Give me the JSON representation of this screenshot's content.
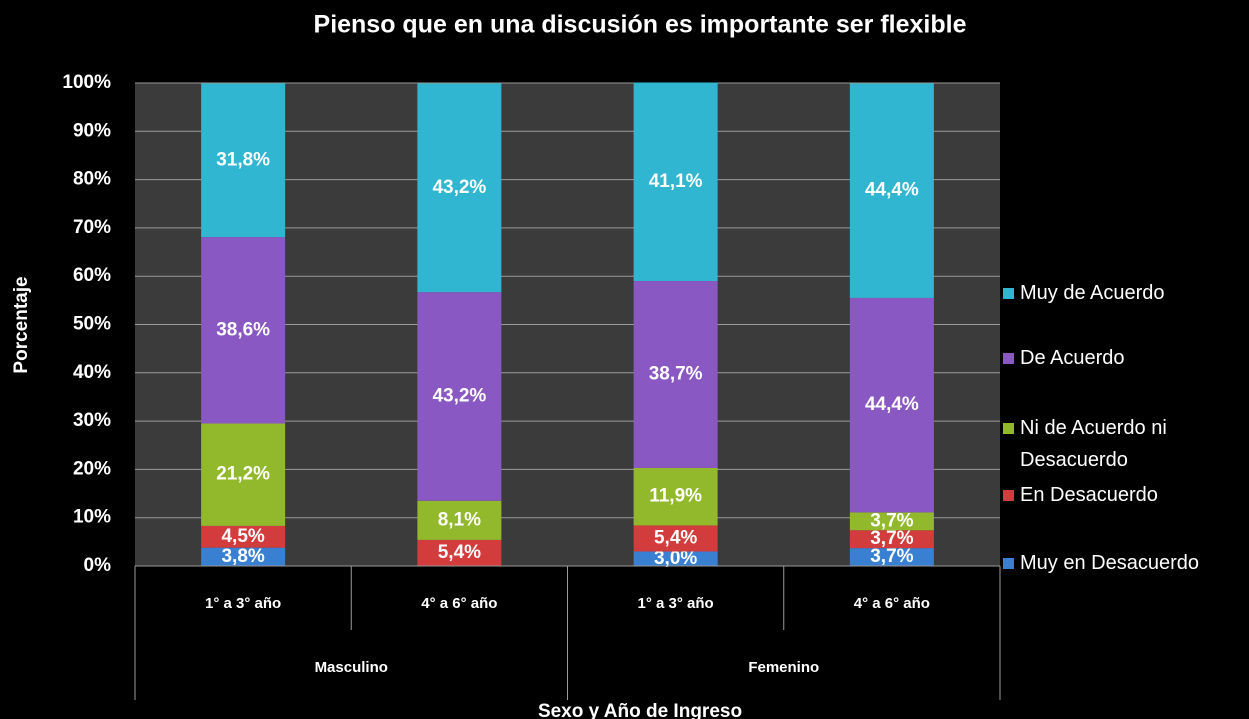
{
  "chart_data": {
    "type": "stacked_bar",
    "title": "Pienso que en una discusión es importante ser flexible",
    "x_label": "Sexo y Año de Ingreso",
    "y_label": "Porcentaje",
    "categories": [
      "1° a 3° año",
      "4° a 6° año",
      "1° a 3° año",
      "4° a 6° año"
    ],
    "groups": [
      "Masculino",
      "Femenino"
    ],
    "series": [
      {
        "name": "Muy en Desacuerdo",
        "color": "#3a80d2",
        "values": [
          3.8,
          null,
          3.0,
          3.7
        ],
        "value_labels": [
          "3,8%",
          null,
          "3,0%",
          "3,7%"
        ]
      },
      {
        "name": "En Desacuerdo",
        "color": "#d23c3c",
        "values": [
          4.5,
          5.4,
          5.4,
          3.7
        ],
        "value_labels": [
          "4,5%",
          "5,4%",
          "5,4%",
          "3,7%"
        ]
      },
      {
        "name": "Ni de Acuerdo ni Desacuerdo",
        "color": "#92b82c",
        "values": [
          21.2,
          8.1,
          11.9,
          3.7
        ],
        "value_labels": [
          "21,2%",
          "8,1%",
          "11,9%",
          "3,7%"
        ]
      },
      {
        "name": "De Acuerdo",
        "color": "#8a58c2",
        "values": [
          38.6,
          43.2,
          38.7,
          44.4
        ],
        "value_labels": [
          "38,6%",
          "43,2%",
          "38,7%",
          "44,4%"
        ]
      },
      {
        "name": "Muy de Acuerdo",
        "color": "#30b6d0",
        "values": [
          31.8,
          43.2,
          41.1,
          44.4
        ],
        "value_labels": [
          "31,8%",
          "43,2%",
          "41,1%",
          "44,4%"
        ]
      }
    ],
    "ylim": [
      0,
      100
    ],
    "yticks": [
      {
        "value": 0,
        "label": "0%"
      },
      {
        "value": 10,
        "label": "10%"
      },
      {
        "value": 20,
        "label": "20%"
      },
      {
        "value": 30,
        "label": "30%"
      },
      {
        "value": 40,
        "label": "40%"
      },
      {
        "value": 50,
        "label": "50%"
      },
      {
        "value": 60,
        "label": "60%"
      },
      {
        "value": 70,
        "label": "70%"
      },
      {
        "value": 80,
        "label": "80%"
      },
      {
        "value": 90,
        "label": "90%"
      },
      {
        "value": 100,
        "label": "100%"
      }
    ],
    "grid": true,
    "legend": "right"
  }
}
